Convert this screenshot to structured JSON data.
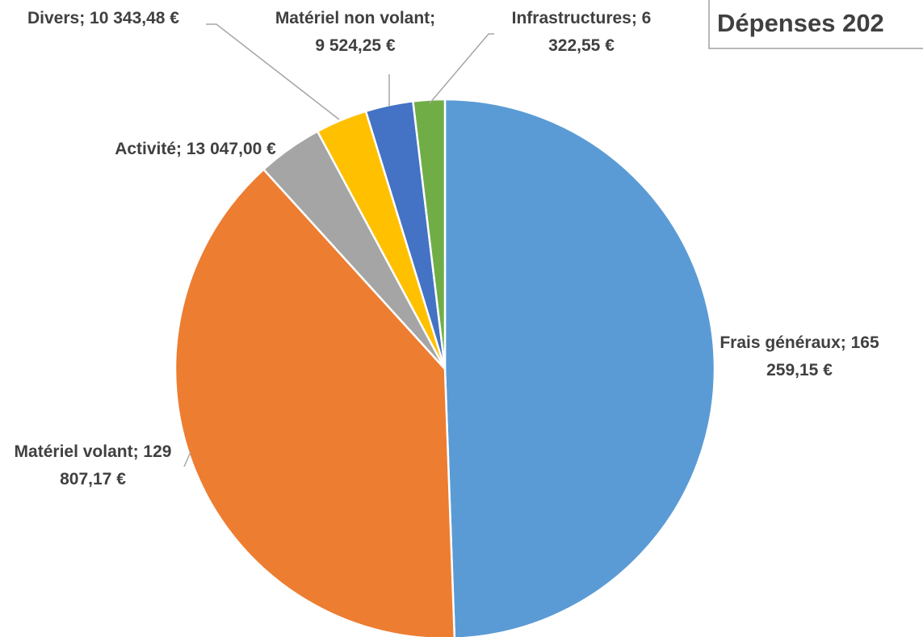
{
  "chart_data": {
    "type": "pie",
    "title": "Dépenses 202",
    "categories": [
      "Frais généraux",
      "Matériel volant",
      "Activité",
      "Divers",
      "Matériel non volant",
      "Infrastructures"
    ],
    "values": [
      165259.15,
      129807.17,
      13047.0,
      10343.48,
      9524.25,
      6322.55
    ],
    "value_labels": [
      "Frais généraux; 165 259,15 €",
      "Matériel volant; 129 807,17 €",
      "Activité; 13 047,00 €",
      "Divers; 10 343,48 €",
      "Matériel non volant; 9 524,25 €",
      "Infrastructures; 6 322,55 €"
    ],
    "colors": [
      "#5b9bd5",
      "#ed7d31",
      "#a5a5a5",
      "#ffc000",
      "#4472c4",
      "#70ad47"
    ]
  }
}
